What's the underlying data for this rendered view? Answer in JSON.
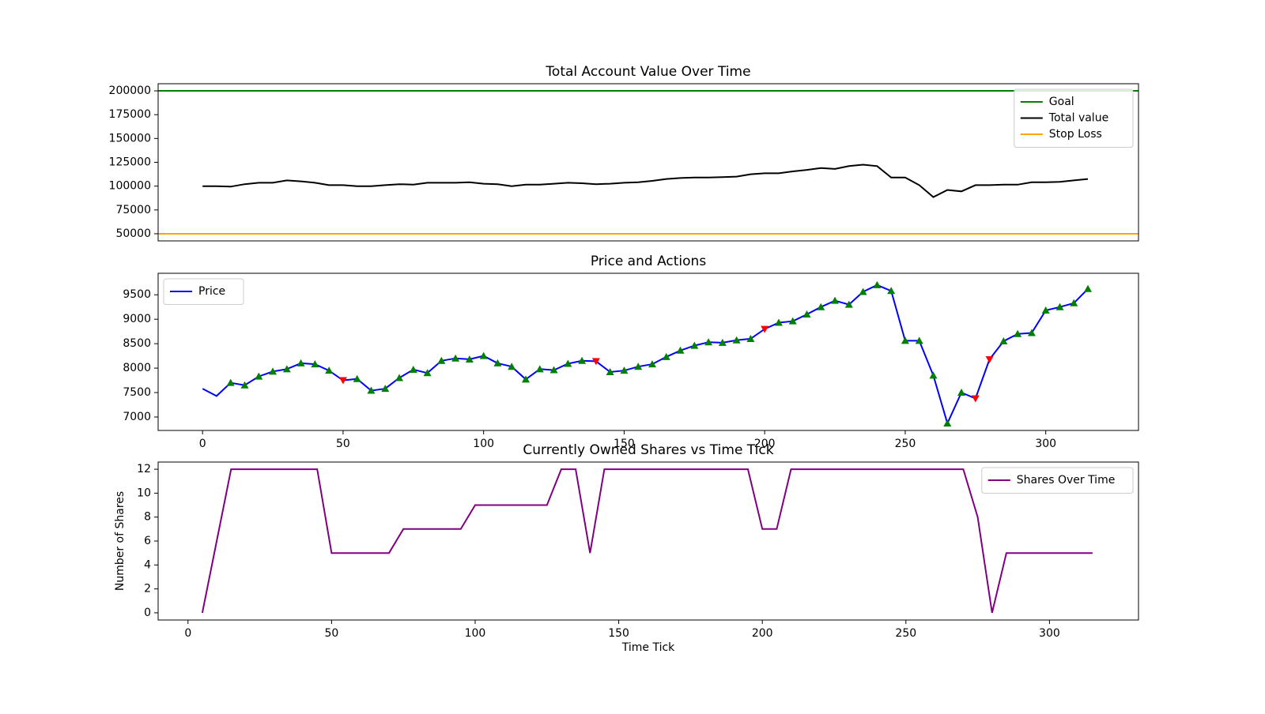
{
  "chart_data": [
    {
      "type": "line",
      "title": "Total Account Value Over Time",
      "x": [
        0,
        5,
        10,
        15,
        20,
        25,
        30,
        35,
        40,
        45,
        50,
        55,
        60,
        65,
        70,
        75,
        80,
        85,
        90,
        95,
        100,
        105,
        110,
        115,
        120,
        125,
        130,
        135,
        140,
        145,
        150,
        155,
        160,
        165,
        170,
        175,
        180,
        185,
        190,
        195,
        200,
        205,
        210,
        215,
        220,
        225,
        230,
        235,
        240,
        245,
        250,
        255,
        260,
        265,
        270,
        275,
        280,
        285,
        290,
        295,
        300,
        305,
        310,
        315
      ],
      "series": [
        {
          "name": "Goal",
          "color": "green",
          "value": 200000
        },
        {
          "name": "Total value",
          "color": "black",
          "values": [
            100000,
            100000,
            99500,
            102000,
            103500,
            103500,
            106000,
            105000,
            103500,
            101000,
            101000,
            100000,
            100000,
            101000,
            102000,
            101500,
            103500,
            103500,
            103500,
            104000,
            102500,
            102000,
            100000,
            101500,
            101500,
            102500,
            103500,
            103000,
            102000,
            102500,
            103500,
            104000,
            105500,
            107500,
            108500,
            109000,
            109000,
            109500,
            110000,
            112500,
            113500,
            113500,
            115500,
            117000,
            119000,
            118000,
            121000,
            122500,
            121000,
            109000,
            109000,
            101000,
            88500,
            96000,
            94500,
            101000,
            101000,
            101500,
            101500,
            104000,
            104000,
            104500,
            106000,
            107500
          ]
        },
        {
          "name": "Stop Loss",
          "color": "orange",
          "value": 50000
        }
      ],
      "xlim": [
        -15.8,
        333
      ],
      "ylim": [
        42500,
        207500
      ],
      "yticks": [
        50000,
        75000,
        100000,
        125000,
        150000,
        175000,
        200000
      ],
      "legend": "upper right"
    },
    {
      "type": "line",
      "title": "Price and Actions",
      "x": [
        0,
        5,
        10,
        15,
        20,
        25,
        30,
        35,
        40,
        45,
        50,
        55,
        60,
        65,
        70,
        75,
        80,
        85,
        90,
        95,
        100,
        105,
        110,
        115,
        120,
        125,
        130,
        135,
        140,
        145,
        150,
        155,
        160,
        165,
        170,
        175,
        180,
        185,
        190,
        195,
        200,
        205,
        210,
        215,
        220,
        225,
        230,
        235,
        240,
        245,
        250,
        255,
        260,
        265,
        270,
        275,
        280,
        285,
        290,
        295,
        300,
        305,
        310,
        315
      ],
      "series": [
        {
          "name": "Price",
          "color": "blue",
          "values": [
            7580,
            7430,
            7700,
            7650,
            7830,
            7930,
            7980,
            8100,
            8080,
            7950,
            7750,
            7780,
            7540,
            7580,
            7800,
            7970,
            7900,
            8150,
            8200,
            8180,
            8250,
            8100,
            8030,
            7770,
            7980,
            7960,
            8090,
            8150,
            8140,
            7920,
            7950,
            8030,
            8080,
            8230,
            8360,
            8460,
            8530,
            8520,
            8570,
            8600,
            8800,
            8930,
            8960,
            9100,
            9250,
            9380,
            9300,
            9560,
            9700,
            9580,
            8560,
            8560,
            7850,
            6870,
            7500,
            7380,
            8180,
            8550,
            8700,
            8720,
            9180,
            9250,
            9330,
            9620
          ]
        }
      ],
      "markers": [
        {
          "symbol": "triangle-up",
          "color": "green",
          "x": [
            10,
            15,
            20,
            25,
            30,
            35,
            40,
            45,
            55,
            60,
            65,
            70,
            75,
            80,
            85,
            90,
            95,
            100,
            105,
            110,
            115,
            120,
            125,
            130,
            135,
            145,
            150,
            155,
            160,
            165,
            170,
            175,
            180,
            185,
            190,
            195,
            205,
            210,
            215,
            220,
            225,
            230,
            235,
            240,
            245,
            250,
            255,
            260,
            265,
            270,
            285,
            290,
            295,
            300,
            305,
            310,
            315
          ],
          "values": [
            7700,
            7650,
            7830,
            7930,
            7980,
            8100,
            8080,
            7950,
            7780,
            7540,
            7580,
            7800,
            7970,
            7900,
            8150,
            8200,
            8180,
            8250,
            8100,
            8030,
            7770,
            7980,
            7960,
            8090,
            8150,
            7920,
            7950,
            8030,
            8080,
            8230,
            8360,
            8460,
            8530,
            8520,
            8570,
            8600,
            8930,
            8960,
            9100,
            9250,
            9380,
            9300,
            9560,
            9700,
            9580,
            8560,
            8560,
            7850,
            6870,
            7500,
            8550,
            8700,
            8720,
            9180,
            9250,
            9330,
            9620
          ]
        },
        {
          "symbol": "triangle-down",
          "color": "red",
          "x": [
            50,
            140,
            200,
            275,
            280
          ],
          "values": [
            7750,
            8140,
            8800,
            7380,
            8180
          ]
        }
      ],
      "xlim": [
        -15.8,
        333
      ],
      "ylim": [
        6725,
        9940
      ],
      "xticks": [
        0,
        50,
        100,
        150,
        200,
        250,
        300
      ],
      "yticks": [
        7000,
        7500,
        8000,
        8500,
        9000,
        9500
      ],
      "legend": "upper left"
    },
    {
      "type": "line",
      "title": "Currently Owned Shares vs Time Tick",
      "xlabel": "Time Tick",
      "ylabel": "Number of Shares",
      "x": [
        5,
        10,
        15,
        20,
        25,
        30,
        35,
        40,
        45,
        50,
        55,
        60,
        65,
        70,
        75,
        80,
        85,
        90,
        95,
        100,
        105,
        110,
        115,
        120,
        125,
        130,
        135,
        140,
        145,
        150,
        155,
        160,
        165,
        170,
        175,
        180,
        185,
        190,
        195,
        200,
        205,
        210,
        215,
        220,
        225,
        230,
        235,
        240,
        245,
        250,
        255,
        260,
        265,
        270,
        275,
        280,
        285,
        290,
        295,
        300,
        305,
        310,
        315
      ],
      "series": [
        {
          "name": "Shares Over Time",
          "color": "purple",
          "values": [
            0,
            6,
            12,
            12,
            12,
            12,
            12,
            12,
            12,
            5,
            5,
            5,
            5,
            5,
            7,
            7,
            7,
            7,
            7,
            9,
            9,
            9,
            9,
            9,
            9,
            12,
            12,
            5,
            12,
            12,
            12,
            12,
            12,
            12,
            12,
            12,
            12,
            12,
            12,
            7,
            7,
            12,
            12,
            12,
            12,
            12,
            12,
            12,
            12,
            12,
            12,
            12,
            12,
            12,
            8,
            0,
            5,
            5,
            5,
            5,
            5,
            5,
            5
          ]
        }
      ],
      "xlim": [
        -10.4,
        331
      ],
      "ylim": [
        -0.6,
        12.6
      ],
      "xticks": [
        0,
        50,
        100,
        150,
        200,
        250,
        300
      ],
      "yticks": [
        0,
        2,
        4,
        6,
        8,
        10,
        12
      ],
      "legend": "upper right"
    }
  ]
}
